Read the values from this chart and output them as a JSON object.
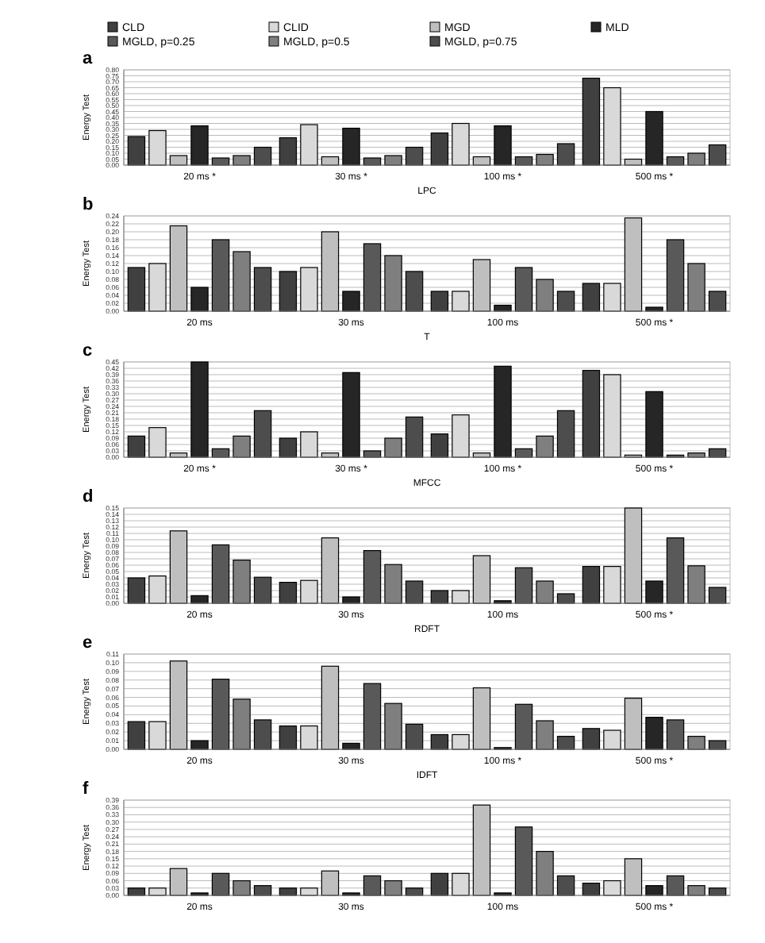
{
  "chart_data": [
    {
      "type": "bar",
      "title": "a",
      "ylabel": "Energy Test",
      "xlabel": "LPC",
      "legend": "top",
      "grid": "y",
      "categories": [
        "20 ms *",
        "30 ms *",
        "100 ms *",
        "500 ms *"
      ],
      "ylim": [
        0,
        0.8
      ],
      "yticks": [
        {
          "value": 0,
          "label": "0.00"
        },
        {
          "value": 0.05,
          "label": "0.05"
        },
        {
          "value": 0.1,
          "label": "0.10"
        },
        {
          "value": 0.15,
          "label": "0.15"
        },
        {
          "value": 0.2,
          "label": "0.20"
        },
        {
          "value": 0.25,
          "label": "0.25"
        },
        {
          "value": 0.3,
          "label": "0.30"
        },
        {
          "value": 0.35,
          "label": "0.35"
        },
        {
          "value": 0.4,
          "label": "0.40"
        },
        {
          "value": 0.45,
          "label": "0.45"
        },
        {
          "value": 0.5,
          "label": "0.50"
        },
        {
          "value": 0.55,
          "label": "0.55"
        },
        {
          "value": 0.6,
          "label": "0.60"
        },
        {
          "value": 0.65,
          "label": "0.65"
        },
        {
          "value": 0.7,
          "label": "0.70"
        },
        {
          "value": 0.75,
          "label": "0.75"
        },
        {
          "value": 0.8,
          "label": "0.80"
        }
      ],
      "series": [
        {
          "name": "CLD",
          "color": "#404040",
          "values": [
            0.24,
            0.23,
            0.27,
            0.73
          ]
        },
        {
          "name": "CLID",
          "color": "#d9d9d9",
          "values": [
            0.29,
            0.34,
            0.35,
            0.65
          ]
        },
        {
          "name": "MGD",
          "color": "#bfbfbf",
          "values": [
            0.08,
            0.07,
            0.07,
            0.05
          ]
        },
        {
          "name": "MLD",
          "color": "#262626",
          "values": [
            0.33,
            0.31,
            0.33,
            0.45
          ]
        },
        {
          "name": "MGLD, p=0.25",
          "color": "#595959",
          "values": [
            0.06,
            0.06,
            0.07,
            0.07
          ]
        },
        {
          "name": "MGLD, p=0.5",
          "color": "#7f7f7f",
          "values": [
            0.08,
            0.08,
            0.09,
            0.1
          ]
        },
        {
          "name": "MGLD, p=0.75",
          "color": "#4d4d4d",
          "values": [
            0.15,
            0.15,
            0.18,
            0.17
          ]
        }
      ]
    },
    {
      "type": "bar",
      "title": "b",
      "ylabel": "Energy Test",
      "xlabel": "T",
      "grid": "y",
      "categories": [
        "20 ms",
        "30 ms",
        "100 ms",
        "500 ms *"
      ],
      "ylim": [
        0,
        0.24
      ],
      "yticks": [
        {
          "value": 0,
          "label": "0.00"
        },
        {
          "value": 0.02,
          "label": "0.02"
        },
        {
          "value": 0.04,
          "label": "0.04"
        },
        {
          "value": 0.06,
          "label": "0.06"
        },
        {
          "value": 0.08,
          "label": "0.08"
        },
        {
          "value": 0.1,
          "label": "0.10"
        },
        {
          "value": 0.12,
          "label": "0.12"
        },
        {
          "value": 0.14,
          "label": "0.14"
        },
        {
          "value": 0.16,
          "label": "0.16"
        },
        {
          "value": 0.18,
          "label": "0.18"
        },
        {
          "value": 0.2,
          "label": "0.20"
        },
        {
          "value": 0.22,
          "label": "0.22"
        },
        {
          "value": 0.24,
          "label": "0.24"
        }
      ],
      "series": [
        {
          "color": "#404040",
          "values": [
            0.11,
            0.1,
            0.05,
            0.07
          ]
        },
        {
          "color": "#d9d9d9",
          "values": [
            0.12,
            0.11,
            0.05,
            0.07
          ]
        },
        {
          "color": "#bfbfbf",
          "values": [
            0.215,
            0.2,
            0.13,
            0.235
          ]
        },
        {
          "color": "#262626",
          "values": [
            0.06,
            0.05,
            0.015,
            0.01
          ]
        },
        {
          "color": "#595959",
          "values": [
            0.18,
            0.17,
            0.11,
            0.18
          ]
        },
        {
          "color": "#7f7f7f",
          "values": [
            0.15,
            0.14,
            0.08,
            0.12
          ]
        },
        {
          "color": "#4d4d4d",
          "values": [
            0.11,
            0.1,
            0.05,
            0.05
          ]
        }
      ]
    },
    {
      "type": "bar",
      "title": "c",
      "ylabel": "Energy Test",
      "xlabel": "MFCC",
      "grid": "y",
      "categories": [
        "20 ms *",
        "30 ms *",
        "100 ms *",
        "500 ms *"
      ],
      "ylim": [
        0,
        0.45
      ],
      "yticks": [
        {
          "value": 0,
          "label": "0.00"
        },
        {
          "value": 0.03,
          "label": "0.03"
        },
        {
          "value": 0.06,
          "label": "0.06"
        },
        {
          "value": 0.09,
          "label": "0.09"
        },
        {
          "value": 0.12,
          "label": "0.12"
        },
        {
          "value": 0.15,
          "label": "0.15"
        },
        {
          "value": 0.18,
          "label": "0.18"
        },
        {
          "value": 0.21,
          "label": "0.21"
        },
        {
          "value": 0.24,
          "label": "0.24"
        },
        {
          "value": 0.27,
          "label": "0.27"
        },
        {
          "value": 0.3,
          "label": "0.30"
        },
        {
          "value": 0.33,
          "label": "0.33"
        },
        {
          "value": 0.36,
          "label": "0.36"
        },
        {
          "value": 0.39,
          "label": "0.39"
        },
        {
          "value": 0.42,
          "label": "0.42"
        },
        {
          "value": 0.45,
          "label": "0.45"
        }
      ],
      "series": [
        {
          "color": "#404040",
          "values": [
            0.1,
            0.09,
            0.11,
            0.41
          ]
        },
        {
          "color": "#d9d9d9",
          "values": [
            0.14,
            0.12,
            0.2,
            0.39
          ]
        },
        {
          "color": "#bfbfbf",
          "values": [
            0.02,
            0.02,
            0.02,
            0.01
          ]
        },
        {
          "color": "#262626",
          "values": [
            0.45,
            0.4,
            0.43,
            0.31
          ]
        },
        {
          "color": "#595959",
          "values": [
            0.04,
            0.03,
            0.04,
            0.01
          ]
        },
        {
          "color": "#7f7f7f",
          "values": [
            0.1,
            0.09,
            0.1,
            0.02
          ]
        },
        {
          "color": "#4d4d4d",
          "values": [
            0.22,
            0.19,
            0.22,
            0.04
          ]
        }
      ]
    },
    {
      "type": "bar",
      "title": "d",
      "ylabel": "Energy Test",
      "xlabel": "RDFT",
      "grid": "y",
      "categories": [
        "20 ms",
        "30 ms",
        "100 ms",
        "500 ms *"
      ],
      "ylim": [
        0,
        0.15
      ],
      "yticks": [
        {
          "value": 0,
          "label": "0.00"
        },
        {
          "value": 0.01,
          "label": "0.01"
        },
        {
          "value": 0.02,
          "label": "0.02"
        },
        {
          "value": 0.03,
          "label": "0.03"
        },
        {
          "value": 0.04,
          "label": "0.04"
        },
        {
          "value": 0.05,
          "label": "0.05"
        },
        {
          "value": 0.06,
          "label": "0.06"
        },
        {
          "value": 0.07,
          "label": "0.07"
        },
        {
          "value": 0.08,
          "label": "0.08"
        },
        {
          "value": 0.09,
          "label": "0.09"
        },
        {
          "value": 0.1,
          "label": "0.10"
        },
        {
          "value": 0.11,
          "label": "0.11"
        },
        {
          "value": 0.12,
          "label": "0.12"
        },
        {
          "value": 0.13,
          "label": "0.13"
        },
        {
          "value": 0.14,
          "label": "0.14"
        },
        {
          "value": 0.15,
          "label": "0.15"
        }
      ],
      "series": [
        {
          "color": "#404040",
          "values": [
            0.04,
            0.033,
            0.02,
            0.058
          ]
        },
        {
          "color": "#d9d9d9",
          "values": [
            0.043,
            0.036,
            0.02,
            0.058
          ]
        },
        {
          "color": "#bfbfbf",
          "values": [
            0.114,
            0.103,
            0.075,
            0.15
          ]
        },
        {
          "color": "#262626",
          "values": [
            0.012,
            0.01,
            0.004,
            0.035
          ]
        },
        {
          "color": "#595959",
          "values": [
            0.092,
            0.083,
            0.056,
            0.103
          ]
        },
        {
          "color": "#7f7f7f",
          "values": [
            0.068,
            0.061,
            0.035,
            0.059
          ]
        },
        {
          "color": "#4d4d4d",
          "values": [
            0.041,
            0.035,
            0.015,
            0.025
          ]
        }
      ]
    },
    {
      "type": "bar",
      "title": "e",
      "ylabel": "Energy Test",
      "xlabel": "IDFT",
      "grid": "y",
      "categories": [
        "20 ms",
        "30 ms",
        "100 ms *",
        "500 ms *"
      ],
      "ylim": [
        0,
        0.11
      ],
      "yticks": [
        {
          "value": 0,
          "label": "0.00"
        },
        {
          "value": 0.01,
          "label": "0.01"
        },
        {
          "value": 0.02,
          "label": "0.02"
        },
        {
          "value": 0.03,
          "label": "0.03"
        },
        {
          "value": 0.04,
          "label": "0.04"
        },
        {
          "value": 0.05,
          "label": "0.05"
        },
        {
          "value": 0.06,
          "label": "0.06"
        },
        {
          "value": 0.07,
          "label": "0.07"
        },
        {
          "value": 0.08,
          "label": "0.08"
        },
        {
          "value": 0.09,
          "label": "0.09"
        },
        {
          "value": 0.1,
          "label": "0.10"
        },
        {
          "value": 0.11,
          "label": "0.11"
        }
      ],
      "series": [
        {
          "color": "#404040",
          "values": [
            0.032,
            0.027,
            0.017,
            0.024
          ]
        },
        {
          "color": "#d9d9d9",
          "values": [
            0.032,
            0.027,
            0.017,
            0.022
          ]
        },
        {
          "color": "#bfbfbf",
          "values": [
            0.102,
            0.096,
            0.071,
            0.059
          ]
        },
        {
          "color": "#262626",
          "values": [
            0.01,
            0.007,
            0.002,
            0.037
          ]
        },
        {
          "color": "#595959",
          "values": [
            0.081,
            0.076,
            0.052,
            0.034
          ]
        },
        {
          "color": "#7f7f7f",
          "values": [
            0.058,
            0.053,
            0.033,
            0.015
          ]
        },
        {
          "color": "#4d4d4d",
          "values": [
            0.034,
            0.029,
            0.015,
            0.01
          ]
        }
      ]
    },
    {
      "type": "bar",
      "title": "f",
      "ylabel": "Energy Test",
      "grid": "y",
      "categories": [
        "20 ms",
        "30 ms",
        "100 ms",
        "500 ms *"
      ],
      "ylim": [
        0,
        0.39
      ],
      "yticks": [
        {
          "value": 0,
          "label": "0.00"
        },
        {
          "value": 0.03,
          "label": "0.03"
        },
        {
          "value": 0.06,
          "label": "0.06"
        },
        {
          "value": 0.09,
          "label": "0.09"
        },
        {
          "value": 0.12,
          "label": "0.12"
        },
        {
          "value": 0.15,
          "label": "0.15"
        },
        {
          "value": 0.18,
          "label": "0.18"
        },
        {
          "value": 0.21,
          "label": "0.21"
        },
        {
          "value": 0.24,
          "label": "0.24"
        },
        {
          "value": 0.27,
          "label": "0.27"
        },
        {
          "value": 0.3,
          "label": "0.30"
        },
        {
          "value": 0.33,
          "label": "0.33"
        },
        {
          "value": 0.36,
          "label": "0.36"
        },
        {
          "value": 0.39,
          "label": "0.39"
        }
      ],
      "series": [
        {
          "color": "#404040",
          "values": [
            0.03,
            0.03,
            0.09,
            0.05
          ]
        },
        {
          "color": "#d9d9d9",
          "values": [
            0.03,
            0.03,
            0.09,
            0.06
          ]
        },
        {
          "color": "#bfbfbf",
          "values": [
            0.11,
            0.1,
            0.37,
            0.15
          ]
        },
        {
          "color": "#262626",
          "values": [
            0.01,
            0.01,
            0.01,
            0.04
          ]
        },
        {
          "color": "#595959",
          "values": [
            0.09,
            0.08,
            0.28,
            0.08
          ]
        },
        {
          "color": "#7f7f7f",
          "values": [
            0.06,
            0.06,
            0.18,
            0.04
          ]
        },
        {
          "color": "#4d4d4d",
          "values": [
            0.04,
            0.03,
            0.08,
            0.03
          ]
        }
      ]
    }
  ]
}
